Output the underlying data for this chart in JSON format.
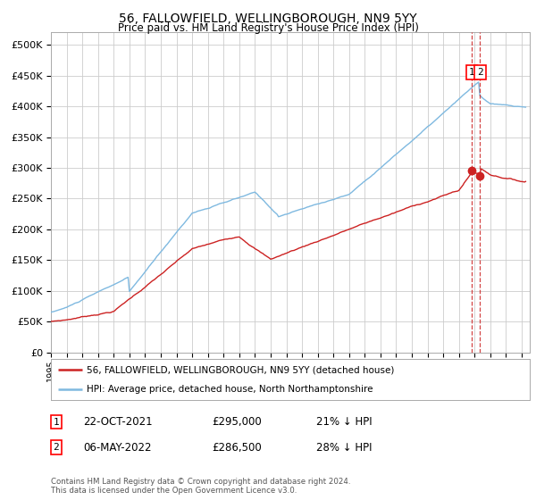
{
  "title": "56, FALLOWFIELD, WELLINGBOROUGH, NN9 5YY",
  "subtitle": "Price paid vs. HM Land Registry's House Price Index (HPI)",
  "hpi_color": "#7fb9e0",
  "price_color": "#cc2222",
  "dashed_line_color": "#cc2222",
  "background_color": "#ffffff",
  "grid_color": "#cccccc",
  "ylim": [
    0,
    520000
  ],
  "xlim_start": 1995.0,
  "xlim_end": 2025.5,
  "transaction1_date": 2021.81,
  "transaction2_date": 2022.35,
  "transaction1_price": 295000,
  "transaction2_price": 286500,
  "legend_label_price": "56, FALLOWFIELD, WELLINGBOROUGH, NN9 5YY (detached house)",
  "legend_label_hpi": "HPI: Average price, detached house, North Northamptonshire",
  "annotation1_date": "22-OCT-2021",
  "annotation1_price": "£295,000",
  "annotation1_hpi": "21% ↓ HPI",
  "annotation2_date": "06-MAY-2022",
  "annotation2_price": "£286,500",
  "annotation2_hpi": "28% ↓ HPI",
  "footer": "Contains HM Land Registry data © Crown copyright and database right 2024.\nThis data is licensed under the Open Government Licence v3.0.",
  "yticks": [
    0,
    50000,
    100000,
    150000,
    200000,
    250000,
    300000,
    350000,
    400000,
    450000,
    500000
  ]
}
